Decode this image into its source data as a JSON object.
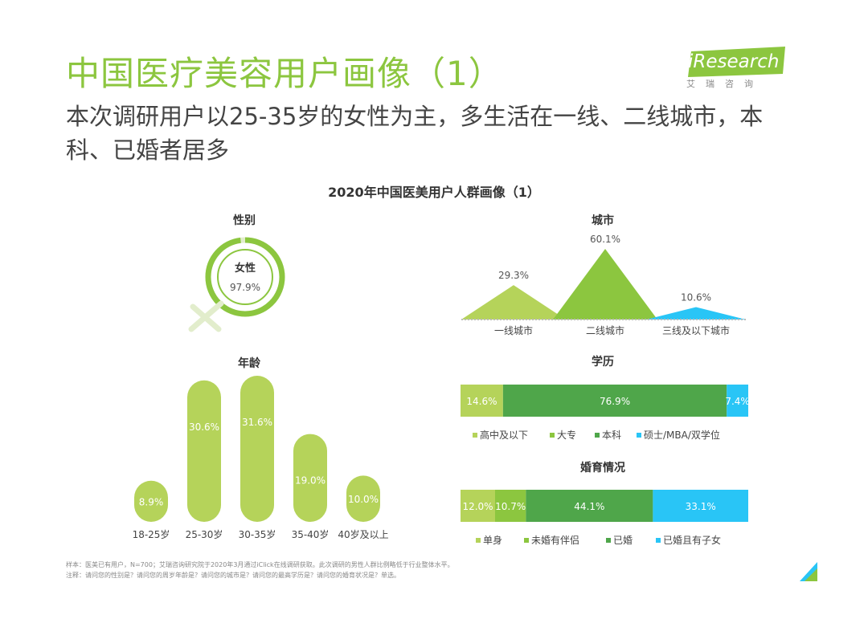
{
  "header": {
    "title": "中国医疗美容用户画像（1）",
    "subtitle": "本次调研用户以25-35岁的女性为主，多生活在一线、二线城市，本科、已婚者居多"
  },
  "logo": {
    "main": "iResearch",
    "sub": "艾瑞咨询"
  },
  "colors": {
    "green": "#8cc63f",
    "light_green": "#b5d35a",
    "mid_green": "#6bb43f",
    "dark_green": "#4fa64a",
    "cyan": "#29c5f6"
  },
  "chart_data": [
    {
      "type": "pie",
      "title": "性别",
      "categories": [
        "女性"
      ],
      "values": [
        97.9
      ],
      "labels": [
        "97.9%"
      ]
    },
    {
      "type": "area",
      "title": "城市",
      "categories": [
        "一线城市",
        "二线城市",
        "三线及以下城市"
      ],
      "values": [
        29.3,
        60.1,
        10.6
      ],
      "labels": [
        "29.3%",
        "60.1%",
        "10.6%"
      ]
    },
    {
      "type": "bar",
      "title": "年龄",
      "categories": [
        "18-25岁",
        "25-30岁",
        "30-35岁",
        "35-40岁",
        "40岁及以上"
      ],
      "values": [
        8.9,
        30.6,
        31.6,
        19.0,
        10.0
      ],
      "labels": [
        "8.9%",
        "30.6%",
        "31.6%",
        "19.0%",
        "10.0%"
      ]
    },
    {
      "type": "bar",
      "title": "学历",
      "orientation": "stacked-horizontal",
      "series": [
        {
          "name": "高中及以下",
          "values": [
            14.6
          ],
          "label": "14.6%"
        },
        {
          "name": "大专",
          "values": [
            0
          ],
          "label": ""
        },
        {
          "name": "本科",
          "values": [
            76.9
          ],
          "label": "76.9%"
        },
        {
          "name": "硕士/MBA/双学位",
          "values": [
            7.4
          ],
          "label": "7.4%"
        }
      ]
    },
    {
      "type": "bar",
      "title": "婚育情况",
      "orientation": "stacked-horizontal",
      "series": [
        {
          "name": "单身",
          "values": [
            12.0
          ],
          "label": "12.0%"
        },
        {
          "name": "未婚有伴侣",
          "values": [
            10.7
          ],
          "label": "10.7%"
        },
        {
          "name": "已婚",
          "values": [
            44.1
          ],
          "label": "44.1%"
        },
        {
          "name": "已婚且有子女",
          "values": [
            33.1
          ],
          "label": "33.1%"
        }
      ]
    }
  ],
  "chart_title": "2020年中国医美用户人群画像（1）",
  "footnote": {
    "line1": "样本：医美已有用户，N=700；艾瑞咨询研究院于2020年3月通过iClick在线调研获取。此次调研的男性人群比例略低于行业整体水平。",
    "line2": "注释：请问您的性别是？请问您的周岁年龄是？请问您的城市是？请问您的最高学历是？请问您的婚育状况是？单选。"
  }
}
